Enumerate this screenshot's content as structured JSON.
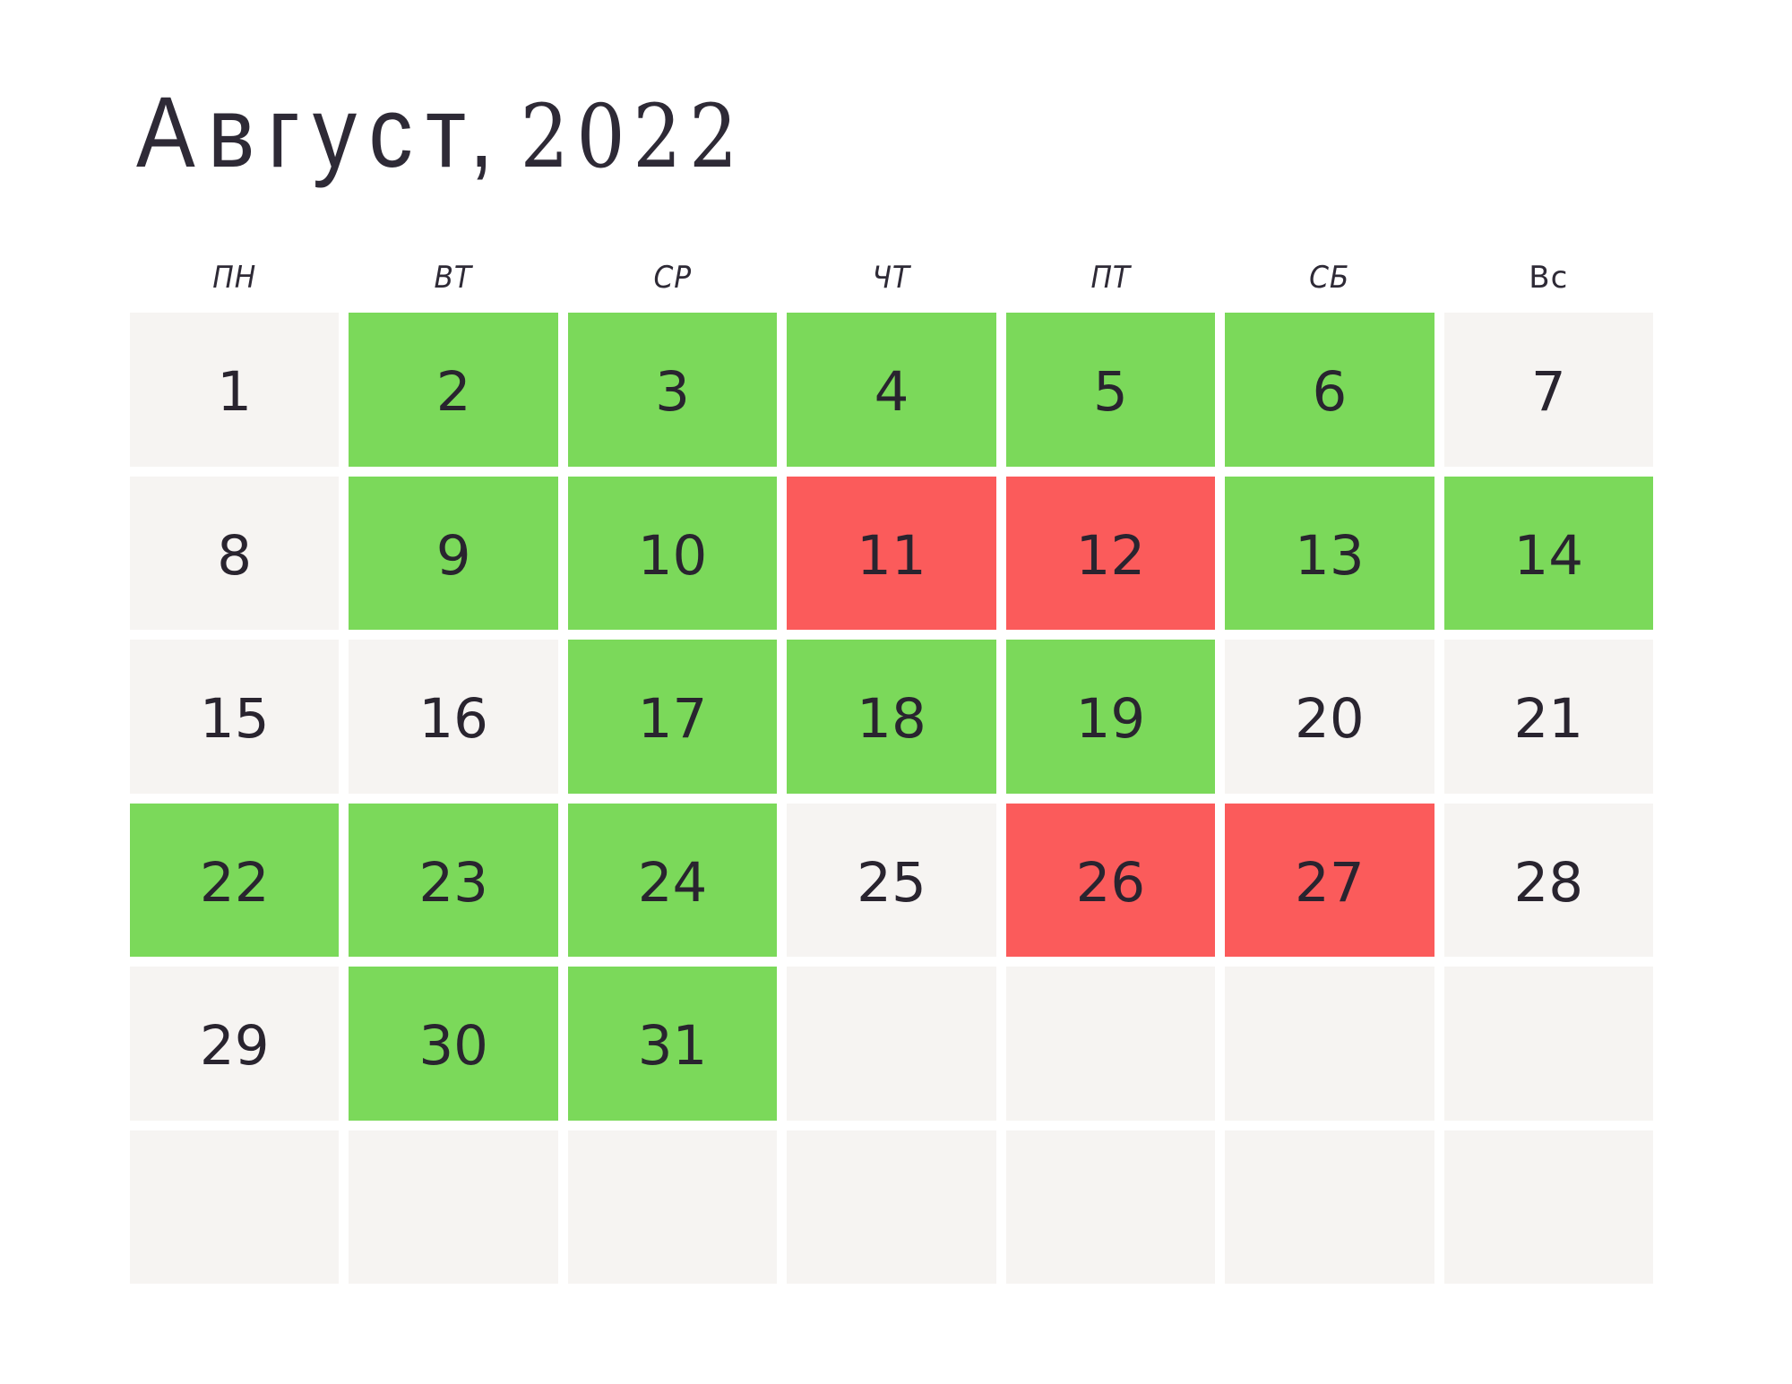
{
  "title": {
    "month": "Август,",
    "year": "2022"
  },
  "weekday_headers": [
    "ПН",
    "ВТ",
    "СР",
    "ЧТ",
    "ПТ",
    "СБ",
    "Вс"
  ],
  "colors": {
    "page_bg": "#ffffff",
    "cell_neutral": "#f6f4f2",
    "cell_green": "#7bd95a",
    "cell_red": "#fb5b5b",
    "title_ink": "#2e2a36",
    "number_ink": "#29242f"
  },
  "calendar": {
    "cells": [
      {
        "day": "1",
        "state": "neutral"
      },
      {
        "day": "2",
        "state": "green"
      },
      {
        "day": "3",
        "state": "green"
      },
      {
        "day": "4",
        "state": "green"
      },
      {
        "day": "5",
        "state": "green"
      },
      {
        "day": "6",
        "state": "green"
      },
      {
        "day": "7",
        "state": "neutral"
      },
      {
        "day": "8",
        "state": "neutral"
      },
      {
        "day": "9",
        "state": "green"
      },
      {
        "day": "10",
        "state": "green"
      },
      {
        "day": "11",
        "state": "red"
      },
      {
        "day": "12",
        "state": "red"
      },
      {
        "day": "13",
        "state": "green"
      },
      {
        "day": "14",
        "state": "green"
      },
      {
        "day": "15",
        "state": "neutral"
      },
      {
        "day": "16",
        "state": "neutral"
      },
      {
        "day": "17",
        "state": "green"
      },
      {
        "day": "18",
        "state": "green"
      },
      {
        "day": "19",
        "state": "green"
      },
      {
        "day": "20",
        "state": "neutral"
      },
      {
        "day": "21",
        "state": "neutral"
      },
      {
        "day": "22",
        "state": "green"
      },
      {
        "day": "23",
        "state": "green"
      },
      {
        "day": "24",
        "state": "green"
      },
      {
        "day": "25",
        "state": "neutral"
      },
      {
        "day": "26",
        "state": "red"
      },
      {
        "day": "27",
        "state": "red"
      },
      {
        "day": "28",
        "state": "neutral"
      },
      {
        "day": "29",
        "state": "neutral"
      },
      {
        "day": "30",
        "state": "green"
      },
      {
        "day": "31",
        "state": "green"
      },
      {
        "day": "",
        "state": "neutral"
      },
      {
        "day": "",
        "state": "neutral"
      },
      {
        "day": "",
        "state": "neutral"
      },
      {
        "day": "",
        "state": "neutral"
      },
      {
        "day": "",
        "state": "neutral"
      },
      {
        "day": "",
        "state": "neutral"
      },
      {
        "day": "",
        "state": "neutral"
      },
      {
        "day": "",
        "state": "neutral"
      },
      {
        "day": "",
        "state": "neutral"
      },
      {
        "day": "",
        "state": "neutral"
      },
      {
        "day": "",
        "state": "neutral"
      }
    ]
  }
}
